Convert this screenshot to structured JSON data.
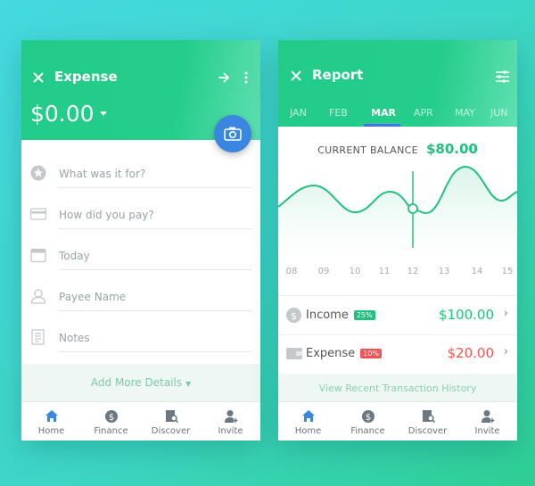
{
  "expense": {
    "title": "Expense",
    "amount": "$0.00",
    "fields": [
      {
        "icon": "star-icon",
        "placeholder": "What was it for?"
      },
      {
        "icon": "card-icon",
        "placeholder": "How did you pay?"
      },
      {
        "icon": "calendar-icon",
        "placeholder": "Today"
      },
      {
        "icon": "user-icon",
        "placeholder": "Payee Name"
      },
      {
        "icon": "notes-icon",
        "placeholder": "Notes"
      }
    ],
    "add_more": "Add More Details"
  },
  "report": {
    "title": "Report",
    "tabs": [
      "JAN",
      "FEB",
      "MAR",
      "APR",
      "MAY",
      "JUN"
    ],
    "active_tab": "MAR",
    "balance_label": "CURRENT BALANCE",
    "balance_value": "$80.00",
    "chart_data": {
      "type": "line",
      "x": [
        "08",
        "09",
        "10",
        "11",
        "12",
        "13",
        "14",
        "15"
      ],
      "selected": "12"
    },
    "income": {
      "label": "Income",
      "badge": "25%",
      "value": "$100.00"
    },
    "expense": {
      "label": "Expense",
      "badge": "10%",
      "value": "$20.00"
    },
    "history": "View Recent Transaction History"
  },
  "nav": [
    "Home",
    "Finance",
    "Discover",
    "Invite"
  ],
  "colors": {
    "green": "#22cc88",
    "red": "#f25555",
    "blue": "#3b86e0"
  }
}
